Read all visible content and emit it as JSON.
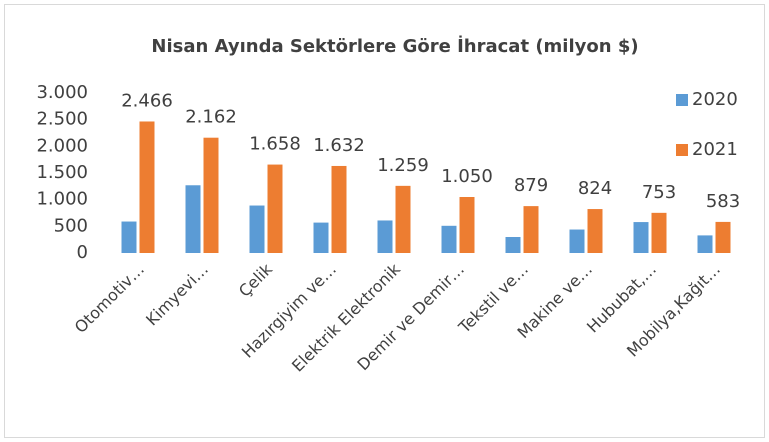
{
  "chart_data": {
    "type": "bar",
    "title": "Nisan Ayında Sektörlere Göre İhracat (milyon $)",
    "categories": [
      "Otomotiv…",
      "Kimyevi…",
      "Çelik",
      "Hazırgiyim ve…",
      "Elektrik Elektronik",
      "Demir ve Demir…",
      "Tekstil ve…",
      "Makine ve…",
      "Hububat,…",
      "Mobilya,Kağıt…"
    ],
    "series": [
      {
        "name": "2020",
        "color": "#5b9bd5",
        "values": [
          590,
          1270,
          890,
          570,
          610,
          510,
          300,
          440,
          580,
          330
        ]
      },
      {
        "name": "2021",
        "color": "#ed7d31",
        "values": [
          2466,
          2162,
          1658,
          1632,
          1259,
          1050,
          879,
          824,
          753,
          583
        ],
        "value_labels": [
          "2.466",
          "2.162",
          "1.658",
          "1.632",
          "1.259",
          "1.050",
          "879",
          "824",
          "753",
          "583"
        ]
      }
    ],
    "ylim": [
      0,
      3000
    ],
    "yticks": [
      0,
      500,
      {
        "value": 1000,
        "label": "1.000"
      },
      {
        "value": 1500,
        "label": "1.500"
      },
      {
        "value": 2000,
        "label": "2.000"
      },
      {
        "value": 2500,
        "label": "2.500"
      },
      {
        "value": 3000,
        "label": "3.000"
      }
    ],
    "legend": "right"
  }
}
